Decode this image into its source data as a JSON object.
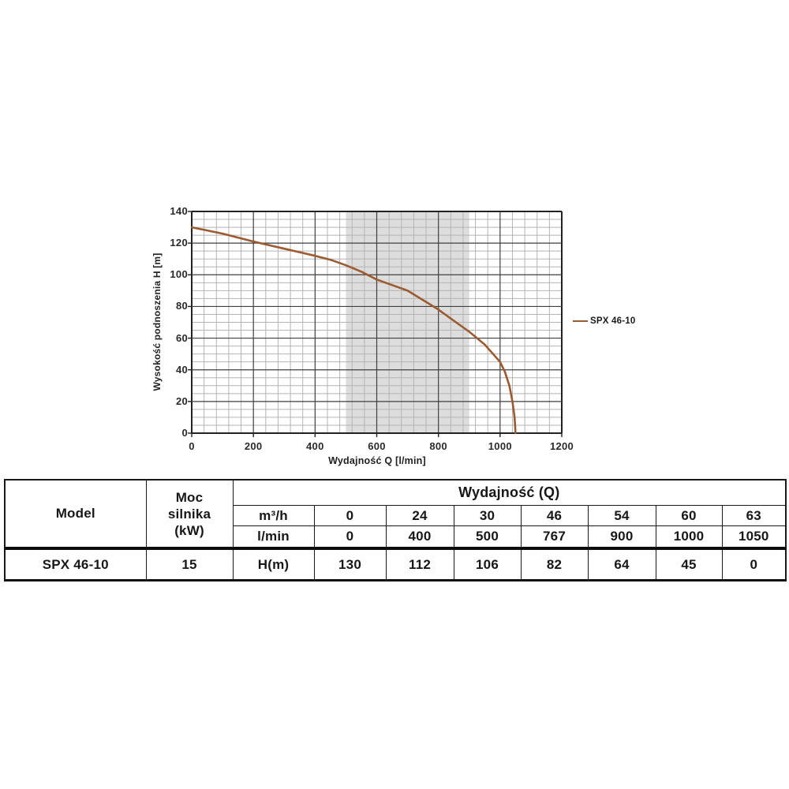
{
  "colors": {
    "curve": "#9C5A30",
    "band": "#d9d9d9",
    "grid_minor": "#b4b4b4",
    "grid_major": "#3f3f3f",
    "axis": "#222222"
  },
  "chart": {
    "x_axis": {
      "title": "Wydajność Q [l/min]",
      "tick_labels": [
        "0",
        "200",
        "400",
        "600",
        "800",
        "1000",
        "1200"
      ]
    },
    "y_axis": {
      "title": "Wysokość podnoszenia H [m]",
      "tick_labels": [
        "0",
        "20",
        "40",
        "60",
        "80",
        "100",
        "120",
        "140"
      ]
    },
    "legend": {
      "label": "SPX 46-10"
    }
  },
  "chart_data": {
    "type": "line",
    "title": "",
    "xlabel": "Wydajność Q [l/min]",
    "ylabel": "Wysokość podnoszenia H [m]",
    "xlim": [
      0,
      1200
    ],
    "ylim": [
      0,
      140
    ],
    "x_major_tick": 200,
    "x_minor_tick": 40,
    "y_major_tick": 20,
    "y_minor_tick": 5,
    "grid": true,
    "legend_position": "right",
    "highlight_band": {
      "x_from": 500,
      "x_to": 900,
      "color": "#d9d9d9"
    },
    "series": [
      {
        "name": "SPX 46-10",
        "color": "#9C5A30",
        "key_points_x": [
          0,
          400,
          500,
          767,
          900,
          1000,
          1050
        ],
        "key_points_y": [
          130,
          112,
          106,
          82,
          64,
          45,
          0
        ],
        "points": [
          [
            0,
            130
          ],
          [
            100,
            126
          ],
          [
            200,
            121
          ],
          [
            300,
            116.5
          ],
          [
            400,
            112
          ],
          [
            450,
            109.5
          ],
          [
            500,
            106
          ],
          [
            550,
            102
          ],
          [
            600,
            97
          ],
          [
            650,
            93.5
          ],
          [
            700,
            90
          ],
          [
            767,
            82
          ],
          [
            800,
            78
          ],
          [
            850,
            71
          ],
          [
            900,
            64
          ],
          [
            950,
            56
          ],
          [
            1000,
            45
          ],
          [
            1015,
            39
          ],
          [
            1030,
            30
          ],
          [
            1040,
            20
          ],
          [
            1047,
            10
          ],
          [
            1050,
            0
          ]
        ]
      }
    ]
  },
  "table": {
    "model_header": "Model",
    "power_header_lines": [
      "Moc",
      "silnika",
      "(kW)"
    ],
    "performance_header": "Wydajność (Q)",
    "unit_rows": [
      {
        "unit": "m³/h",
        "values": [
          "0",
          "24",
          "30",
          "46",
          "54",
          "60",
          "63"
        ]
      },
      {
        "unit": "l/min",
        "values": [
          "0",
          "400",
          "500",
          "767",
          "900",
          "1000",
          "1050"
        ]
      }
    ],
    "data_row": {
      "model": "SPX 46-10",
      "power": "15",
      "unit": "H(m)",
      "values": [
        "130",
        "112",
        "106",
        "82",
        "64",
        "45",
        "0"
      ]
    }
  }
}
